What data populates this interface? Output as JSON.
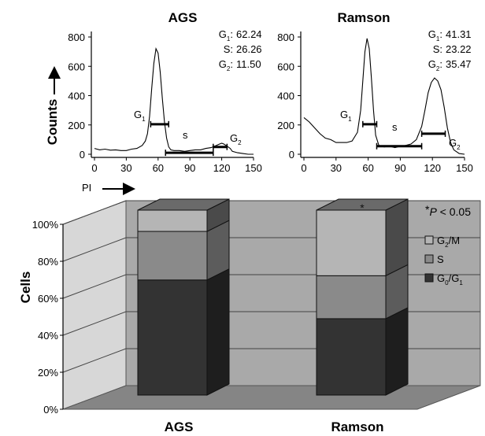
{
  "chart_data": [
    {
      "type": "line",
      "title": "AGS",
      "ylabel": "Counts",
      "xlabel": "PI",
      "xlim": [
        0,
        150
      ],
      "ylim": [
        0,
        800
      ],
      "xticks": [
        "0",
        "30",
        "60",
        "90",
        "120",
        "150"
      ],
      "yticks": [
        "0",
        "200",
        "400",
        "600",
        "800"
      ],
      "stats": [
        {
          "label": "G1",
          "sub": "1",
          "base": "G",
          "value": "62.24"
        },
        {
          "label": "S",
          "sub": "",
          "base": "S",
          "value": "26.26"
        },
        {
          "label": "G2",
          "sub": "2",
          "base": "G",
          "value": "11.50"
        }
      ],
      "peak_labels": [
        {
          "base": "G",
          "sub": "1"
        },
        {
          "base": "s",
          "sub": ""
        },
        {
          "base": "G",
          "sub": "2"
        }
      ],
      "gates": [
        {
          "x1": 53,
          "x2": 70,
          "y": 205
        },
        {
          "x1": 67,
          "x2": 112,
          "y": 10
        },
        {
          "x1": 112,
          "x2": 125,
          "y": 50
        }
      ],
      "x": [
        0,
        5,
        10,
        15,
        20,
        25,
        30,
        35,
        40,
        45,
        48,
        50,
        52,
        54,
        56,
        58,
        60,
        62,
        64,
        66,
        68,
        70,
        72,
        75,
        80,
        85,
        90,
        95,
        100,
        105,
        110,
        115,
        118,
        120,
        122,
        124,
        126,
        128,
        130,
        135,
        140,
        145,
        150
      ],
      "y": [
        40,
        30,
        35,
        28,
        30,
        25,
        25,
        35,
        40,
        60,
        90,
        140,
        260,
        450,
        620,
        720,
        690,
        560,
        380,
        220,
        110,
        50,
        30,
        25,
        25,
        20,
        25,
        30,
        30,
        40,
        45,
        60,
        70,
        75,
        70,
        60,
        50,
        40,
        20,
        10,
        5,
        0,
        0
      ]
    },
    {
      "type": "line",
      "title": "Ramson",
      "xlim": [
        0,
        150
      ],
      "ylim": [
        0,
        800
      ],
      "xticks": [
        "0",
        "30",
        "60",
        "90",
        "120",
        "150"
      ],
      "yticks": [
        "0",
        "200",
        "400",
        "600",
        "800"
      ],
      "stats": [
        {
          "label": "G1",
          "sub": "1",
          "base": "G",
          "value": "41.31"
        },
        {
          "label": "S",
          "sub": "",
          "base": "S",
          "value": "23.22"
        },
        {
          "label": "G2",
          "sub": "2",
          "base": "G",
          "value": "35.47"
        }
      ],
      "peak_labels": [
        {
          "base": "G",
          "sub": "1"
        },
        {
          "base": "s",
          "sub": ""
        },
        {
          "base": "G",
          "sub": "2"
        }
      ],
      "gates": [
        {
          "x1": 55,
          "x2": 68,
          "y": 205
        },
        {
          "x1": 68,
          "x2": 110,
          "y": 55
        },
        {
          "x1": 110,
          "x2": 132,
          "y": 140
        }
      ],
      "x": [
        0,
        5,
        10,
        15,
        20,
        25,
        30,
        35,
        40,
        45,
        50,
        53,
        55,
        57,
        59,
        61,
        63,
        65,
        67,
        70,
        75,
        80,
        85,
        90,
        95,
        100,
        105,
        110,
        113,
        116,
        119,
        122,
        125,
        128,
        131,
        134,
        137,
        140,
        145,
        150
      ],
      "y": [
        250,
        220,
        180,
        140,
        110,
        100,
        80,
        80,
        80,
        90,
        150,
        300,
        500,
        700,
        790,
        720,
        520,
        300,
        130,
        60,
        50,
        55,
        45,
        55,
        60,
        70,
        100,
        190,
        300,
        420,
        490,
        520,
        500,
        440,
        320,
        180,
        80,
        30,
        5,
        0
      ]
    },
    {
      "type": "bar",
      "stacked": true,
      "style": "3d",
      "ylabel": "Cells",
      "categories": [
        "AGS",
        "Ramson"
      ],
      "yticks": [
        "0%",
        "20%",
        "40%",
        "60%",
        "80%",
        "100%"
      ],
      "ylim": [
        0,
        100
      ],
      "annotation": {
        "star": "*",
        "text_italic": "P",
        "text_rest": " < 0.05"
      },
      "bar_annotations": [
        "",
        "*"
      ],
      "legend_position": "right",
      "series": [
        {
          "name": "G0/G1",
          "base": "G",
          "sub": "0",
          "mid": "/G",
          "sub2": "1",
          "color": "#333333",
          "side": "#1e1e1e",
          "values": [
            62.24,
            41.31
          ]
        },
        {
          "name": "S",
          "base": "S",
          "sub": "",
          "mid": "",
          "sub2": "",
          "color": "#8a8a8a",
          "side": "#5c5c5c",
          "values": [
            26.26,
            23.22
          ]
        },
        {
          "name": "G2/M",
          "base": "G",
          "sub": "2",
          "mid": "/M",
          "sub2": "",
          "color": "#b5b5b5",
          "side": "#4a4a4a",
          "values": [
            11.5,
            35.47
          ]
        }
      ]
    }
  ]
}
